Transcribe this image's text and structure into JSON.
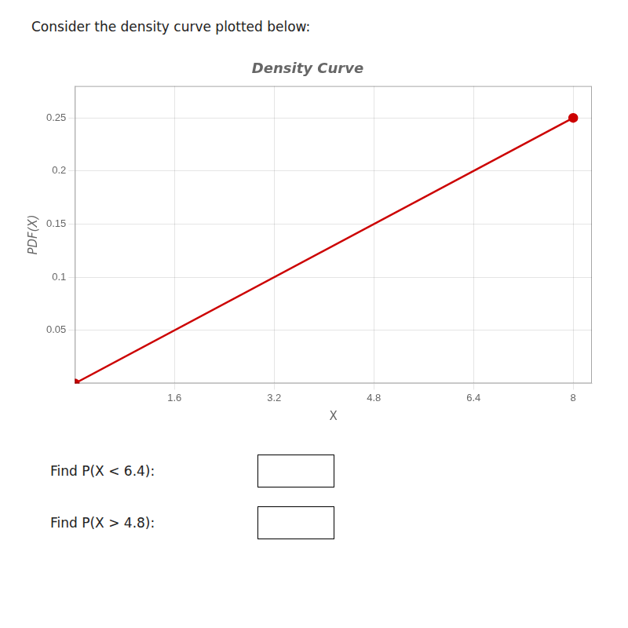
{
  "chart_data": {
    "type": "line",
    "title": "Density Curve",
    "xlabel": "X",
    "ylabel": "PDF(X)",
    "x": [
      0,
      8
    ],
    "values": [
      0,
      0.25
    ],
    "color": "#cc0000",
    "marker": "circle",
    "xlim": [
      0,
      8.3
    ],
    "ylim": [
      0,
      0.28
    ],
    "xticks": [
      1.6,
      3.2,
      4.8,
      6.4,
      8
    ],
    "yticks": [
      0.05,
      0.1,
      0.15,
      0.2,
      0.25
    ],
    "grid": true,
    "annotations": [
      "Consider the density curve plotted below:",
      "Find P(X < 6.4):",
      "Find P(X > 4.8):"
    ]
  }
}
